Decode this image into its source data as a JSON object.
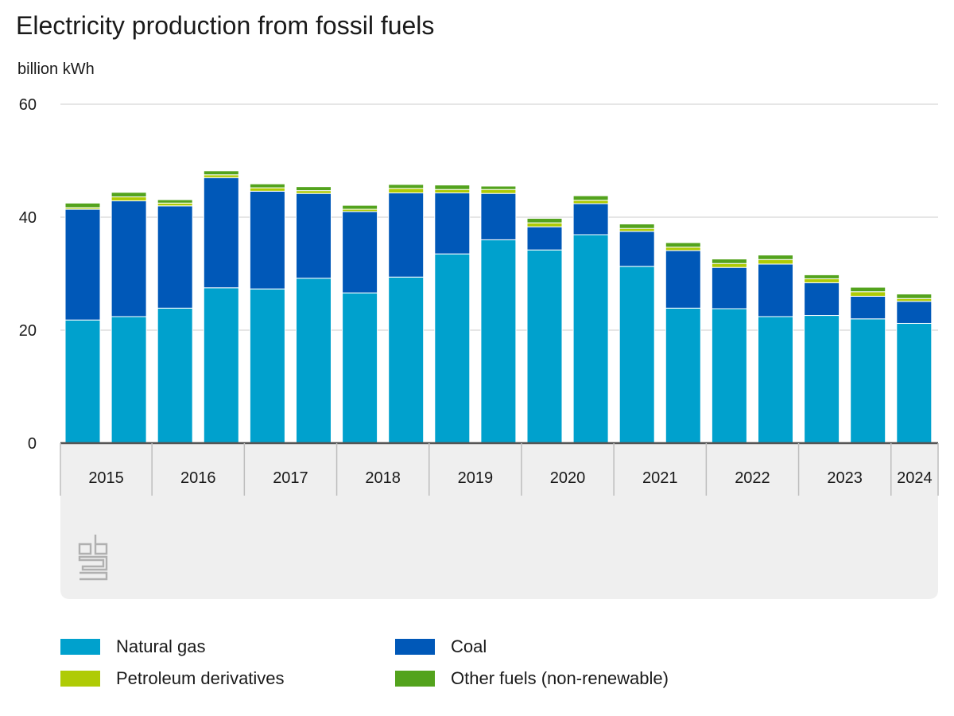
{
  "header": {
    "title": "Electricity production from fossil fuels",
    "unit": "billion kWh"
  },
  "colors": {
    "natural_gas": "#00a1cd",
    "coal": "#0058b8",
    "petroleum": "#afcb05",
    "other": "#53a31d",
    "grid": "#cccccc",
    "axis_band": "#efefef",
    "logo": "#b0b0b0"
  },
  "logo": {
    "icon": "cbs-logo-icon"
  },
  "legend": [
    {
      "label": "Natural gas",
      "color": "#00a1cd"
    },
    {
      "label": "Coal",
      "color": "#0058b8"
    },
    {
      "label": "Petroleum derivatives",
      "color": "#afcb05"
    },
    {
      "label": "Other fuels (non-renewable)",
      "color": "#53a31d"
    }
  ],
  "chart_data": {
    "type": "bar",
    "stacked": true,
    "title": "Electricity production from fossil fuels",
    "ylabel": "billion kWh",
    "ylim": [
      0,
      60
    ],
    "yticks": [
      0,
      20,
      40,
      60
    ],
    "grid": true,
    "legend_position": "bottom",
    "year_groups": [
      {
        "label": "2015",
        "bars": 2
      },
      {
        "label": "2016",
        "bars": 2
      },
      {
        "label": "2017",
        "bars": 2
      },
      {
        "label": "2018",
        "bars": 2
      },
      {
        "label": "2019",
        "bars": 2
      },
      {
        "label": "2020",
        "bars": 2
      },
      {
        "label": "2021",
        "bars": 2
      },
      {
        "label": "2022",
        "bars": 2
      },
      {
        "label": "2023",
        "bars": 2
      },
      {
        "label": "2024",
        "bars": 1
      }
    ],
    "series": [
      {
        "name": "Natural gas",
        "key": "natural_gas",
        "values": [
          21.8,
          22.4,
          23.9,
          27.5,
          27.3,
          29.2,
          26.6,
          29.4,
          33.5,
          36.0,
          34.2,
          36.9,
          31.3,
          23.9,
          23.8,
          22.4,
          22.6,
          22.0,
          21.2
        ]
      },
      {
        "name": "Coal",
        "key": "coal",
        "values": [
          19.6,
          20.5,
          18.1,
          19.5,
          17.3,
          15.0,
          14.4,
          14.9,
          10.8,
          8.2,
          4.1,
          5.5,
          6.2,
          10.2,
          7.3,
          9.3,
          5.8,
          4.0,
          3.9
        ]
      },
      {
        "name": "Petroleum derivatives",
        "key": "petroleum",
        "values": [
          0.3,
          0.7,
          0.5,
          0.5,
          0.6,
          0.5,
          0.4,
          0.8,
          0.6,
          0.7,
          0.7,
          0.6,
          0.5,
          0.6,
          0.7,
          0.8,
          0.7,
          0.8,
          0.5
        ]
      },
      {
        "name": "Other fuels (non-renewable)",
        "key": "other",
        "values": [
          0.8,
          0.8,
          0.6,
          0.7,
          0.7,
          0.7,
          0.7,
          0.7,
          0.8,
          0.6,
          0.8,
          0.8,
          0.8,
          0.8,
          0.8,
          0.8,
          0.7,
          0.8,
          0.8
        ]
      }
    ]
  }
}
